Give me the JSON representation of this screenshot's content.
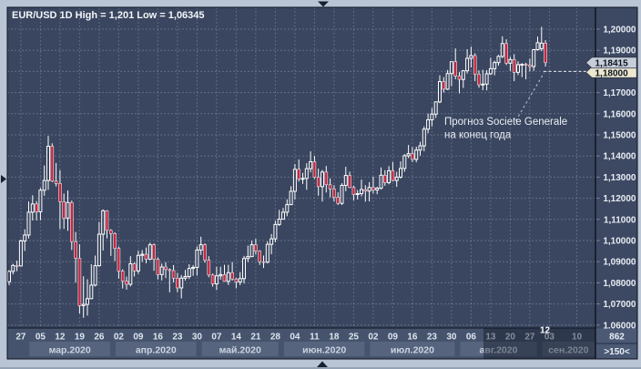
{
  "header": {
    "title": "EUR/USD 1D High = 1,201 Low = 1,06345"
  },
  "annotation": {
    "line1": "Прогноз Societe Generale",
    "line2": "на конец года"
  },
  "price_axis": {
    "current_badge": "1,18415",
    "forecast_badge": "1,18000"
  },
  "footer_info": {
    "bars": "862",
    "range": ">150<"
  },
  "countdown": "12",
  "colors": {
    "frame": "#b9c4d4",
    "chart_bg": "#3a465f",
    "axis_bg": "#46536d",
    "month_band": "#56647e",
    "grid": "#8b96ae",
    "bull": "#ffffff",
    "bear": "#c42742",
    "label_text": "#dde4ef",
    "current_badge_bg": "#c7ced9",
    "forecast_badge_bg": "#ece7cd"
  },
  "chart_data": {
    "type": "candlestick",
    "symbol": "EUR/USD",
    "timeframe": "1D",
    "visible_high": "1,201",
    "visible_low": "1,06345",
    "current_price": 1.18415,
    "forecast_price": 1.18,
    "start_date": "2020-02-24",
    "y_axis": {
      "min": 1.06,
      "max": 1.2,
      "step": 0.01,
      "labels": [
        "1,20000",
        "1,19000",
        "1,18000",
        "1,17000",
        "1,16000",
        "1,15000",
        "1,14000",
        "1,13000",
        "1,12000",
        "1,11000",
        "1,10000",
        "1,09000",
        "1,08000",
        "1,07000",
        "1,06000"
      ]
    },
    "x_ticks": [
      {
        "t": "27",
        "i": 3
      },
      {
        "t": "05",
        "i": 8
      },
      {
        "t": "12",
        "i": 13
      },
      {
        "t": "19",
        "i": 18
      },
      {
        "t": "26",
        "i": 23
      },
      {
        "t": "02",
        "i": 28
      },
      {
        "t": "09",
        "i": 33
      },
      {
        "t": "16",
        "i": 38
      },
      {
        "t": "23",
        "i": 43
      },
      {
        "t": "30",
        "i": 48
      },
      {
        "t": "07",
        "i": 53
      },
      {
        "t": "14",
        "i": 58
      },
      {
        "t": "21",
        "i": 63
      },
      {
        "t": "28",
        "i": 68
      },
      {
        "t": "04",
        "i": 73
      },
      {
        "t": "11",
        "i": 78
      },
      {
        "t": "18",
        "i": 83
      },
      {
        "t": "25",
        "i": 88
      },
      {
        "t": "02",
        "i": 93
      },
      {
        "t": "09",
        "i": 98
      },
      {
        "t": "16",
        "i": 103
      },
      {
        "t": "23",
        "i": 108
      },
      {
        "t": "30",
        "i": 113
      },
      {
        "t": "06",
        "i": 118
      },
      {
        "t": "13",
        "i": 123
      },
      {
        "t": "20",
        "i": 128
      },
      {
        "t": "27",
        "i": 133
      },
      {
        "t": "03",
        "i": 138
      },
      {
        "t": "10",
        "i": 145
      }
    ],
    "months": [
      {
        "label": "",
        "start": -2,
        "end": 4
      },
      {
        "label": "мар.2020",
        "start": 5,
        "end": 26
      },
      {
        "label": "апр.2020",
        "start": 27,
        "end": 48
      },
      {
        "label": "май.2020",
        "start": 49,
        "end": 69
      },
      {
        "label": "июн.2020",
        "start": 70,
        "end": 91
      },
      {
        "label": "июл.2020",
        "start": 92,
        "end": 114
      },
      {
        "label": "авг.2020",
        "start": 115,
        "end": 135
      },
      {
        "label": "сен.2020",
        "start": 136,
        "end": 152
      }
    ],
    "candles": [
      [
        1.0805,
        1.086,
        1.0788,
        1.0854
      ],
      [
        1.0854,
        1.089,
        1.084,
        1.0882
      ],
      [
        1.0882,
        1.0905,
        1.0855,
        1.088
      ],
      [
        1.088,
        1.1005,
        1.0878,
        1.0998
      ],
      [
        1.0998,
        1.1053,
        1.0951,
        1.1026
      ],
      [
        1.1026,
        1.1185,
        1.101,
        1.1134
      ],
      [
        1.1134,
        1.1214,
        1.1095,
        1.1173
      ],
      [
        1.1173,
        1.1187,
        1.1095,
        1.1136
      ],
      [
        1.1136,
        1.1249,
        1.1096,
        1.1238
      ],
      [
        1.1238,
        1.1355,
        1.1212,
        1.1284
      ],
      [
        1.1284,
        1.1495,
        1.124,
        1.1446
      ],
      [
        1.1446,
        1.146,
        1.1276,
        1.1281
      ],
      [
        1.1281,
        1.1367,
        1.1256,
        1.127
      ],
      [
        1.127,
        1.1333,
        1.1054,
        1.1184
      ],
      [
        1.1184,
        1.1222,
        1.1055,
        1.1106
      ],
      [
        1.1106,
        1.1237,
        1.1046,
        1.118
      ],
      [
        1.118,
        1.1189,
        1.0955,
        1.0995
      ],
      [
        1.0995,
        1.104,
        1.0801,
        1.0916
      ],
      [
        1.0916,
        1.0982,
        1.0655,
        1.0692
      ],
      [
        1.0692,
        1.0831,
        1.06345,
        1.0698
      ],
      [
        1.0698,
        1.0817,
        1.0645,
        1.0725
      ],
      [
        1.0725,
        1.0888,
        1.0723,
        1.0789
      ],
      [
        1.0789,
        1.0929,
        1.0783,
        1.0881
      ],
      [
        1.0881,
        1.1088,
        1.0877,
        1.103
      ],
      [
        1.103,
        1.1147,
        1.0953,
        1.1141
      ],
      [
        1.1141,
        1.1144,
        1.101,
        1.1048
      ],
      [
        1.1048,
        1.1054,
        1.0927,
        1.1033
      ],
      [
        1.1033,
        1.1039,
        1.0903,
        1.0963
      ],
      [
        1.0963,
        1.0971,
        1.082,
        1.0855
      ],
      [
        1.0855,
        1.0864,
        1.0773,
        1.0808
      ],
      [
        1.0808,
        1.083,
        1.0768,
        1.0793
      ],
      [
        1.0793,
        1.0926,
        1.0783,
        1.089
      ],
      [
        1.089,
        1.0897,
        1.083,
        1.0856
      ],
      [
        1.0856,
        1.0952,
        1.0842,
        1.093
      ],
      [
        1.093,
        1.0955,
        1.0899,
        1.0935
      ],
      [
        1.0935,
        1.0967,
        1.0892,
        1.0912
      ],
      [
        1.0912,
        1.099,
        1.0907,
        1.098
      ],
      [
        1.098,
        1.0986,
        1.0857,
        1.0911
      ],
      [
        1.0911,
        1.092,
        1.0816,
        1.0839
      ],
      [
        1.0839,
        1.0891,
        1.0811,
        1.0875
      ],
      [
        1.0875,
        1.0897,
        1.0822,
        1.0863
      ],
      [
        1.0863,
        1.0868,
        1.0755,
        1.0858
      ],
      [
        1.0858,
        1.0884,
        1.0802,
        1.0822
      ],
      [
        1.0822,
        1.0847,
        1.0756,
        1.0776
      ],
      [
        1.0776,
        1.0837,
        1.0726,
        1.0822
      ],
      [
        1.0822,
        1.0861,
        1.0811,
        1.083
      ],
      [
        1.083,
        1.0888,
        1.0818,
        1.0868
      ],
      [
        1.0868,
        1.0884,
        1.0833,
        1.0873
      ],
      [
        1.0873,
        1.0972,
        1.0834,
        1.0955
      ],
      [
        1.0955,
        1.1018,
        1.0932,
        1.098
      ],
      [
        1.098,
        1.0986,
        1.0895,
        1.0907
      ],
      [
        1.0907,
        1.0926,
        1.0826,
        1.0837
      ],
      [
        1.0837,
        1.0844,
        1.0782,
        1.0795
      ],
      [
        1.0795,
        1.0876,
        1.0766,
        1.0833
      ],
      [
        1.0833,
        1.0876,
        1.0815,
        1.0839
      ],
      [
        1.0839,
        1.0885,
        1.0805,
        1.0807
      ],
      [
        1.0807,
        1.0885,
        1.079,
        1.0848
      ],
      [
        1.0848,
        1.0898,
        1.081,
        1.0818
      ],
      [
        1.0818,
        1.0824,
        1.0775,
        1.0804
      ],
      [
        1.0804,
        1.0851,
        1.0789,
        1.082
      ],
      [
        1.082,
        1.0927,
        1.0797,
        1.0915
      ],
      [
        1.0915,
        1.0976,
        1.0898,
        1.0924
      ],
      [
        1.0924,
        1.0999,
        1.0922,
        1.098
      ],
      [
        1.098,
        1.1008,
        1.0934,
        1.095
      ],
      [
        1.095,
        1.0954,
        1.0885,
        1.09
      ],
      [
        1.09,
        1.0929,
        1.087,
        1.0898
      ],
      [
        1.0898,
        1.0996,
        1.0891,
        1.0982
      ],
      [
        1.0982,
        1.1031,
        1.0935,
        1.1008
      ],
      [
        1.1008,
        1.1093,
        1.0992,
        1.1076
      ],
      [
        1.1076,
        1.1145,
        1.1069,
        1.1101
      ],
      [
        1.1101,
        1.1154,
        1.1101,
        1.1134
      ],
      [
        1.1134,
        1.1195,
        1.1115,
        1.117
      ],
      [
        1.117,
        1.1257,
        1.1167,
        1.1233
      ],
      [
        1.1233,
        1.1362,
        1.1194,
        1.1337
      ],
      [
        1.1337,
        1.1384,
        1.1279,
        1.1291
      ],
      [
        1.1291,
        1.132,
        1.1268,
        1.1294
      ],
      [
        1.1294,
        1.1366,
        1.124,
        1.134
      ],
      [
        1.134,
        1.1422,
        1.1322,
        1.1373
      ],
      [
        1.1373,
        1.14,
        1.1292,
        1.1299
      ],
      [
        1.1299,
        1.134,
        1.1212,
        1.1255
      ],
      [
        1.1255,
        1.1334,
        1.1184,
        1.1324
      ],
      [
        1.1324,
        1.1353,
        1.1227,
        1.1264
      ],
      [
        1.1264,
        1.1294,
        1.1204,
        1.1244
      ],
      [
        1.1244,
        1.1262,
        1.1185,
        1.1205
      ],
      [
        1.1205,
        1.1228,
        1.1168,
        1.1176
      ],
      [
        1.1176,
        1.1271,
        1.1168,
        1.1261
      ],
      [
        1.1261,
        1.1349,
        1.1233,
        1.1308
      ],
      [
        1.1308,
        1.1326,
        1.1248,
        1.1251
      ],
      [
        1.1251,
        1.126,
        1.119,
        1.1218
      ],
      [
        1.1218,
        1.1239,
        1.1194,
        1.1222
      ],
      [
        1.1222,
        1.1288,
        1.1209,
        1.1241
      ],
      [
        1.1241,
        1.1262,
        1.1184,
        1.1234
      ],
      [
        1.1234,
        1.1276,
        1.1185,
        1.1251
      ],
      [
        1.1251,
        1.1302,
        1.1223,
        1.1239
      ],
      [
        1.1239,
        1.1254,
        1.1219,
        1.1248
      ],
      [
        1.1248,
        1.1346,
        1.1241,
        1.1309
      ],
      [
        1.1309,
        1.1333,
        1.1259,
        1.1274
      ],
      [
        1.1274,
        1.1352,
        1.1266,
        1.133
      ],
      [
        1.133,
        1.1371,
        1.128,
        1.1284
      ],
      [
        1.1284,
        1.1325,
        1.1254,
        1.13
      ],
      [
        1.13,
        1.1375,
        1.1293,
        1.1341
      ],
      [
        1.1341,
        1.1409,
        1.1325,
        1.1401
      ],
      [
        1.1401,
        1.1452,
        1.139,
        1.1411
      ],
      [
        1.1411,
        1.1442,
        1.1371,
        1.1384
      ],
      [
        1.1384,
        1.1444,
        1.137,
        1.1428
      ],
      [
        1.1428,
        1.1467,
        1.1402,
        1.1448
      ],
      [
        1.1448,
        1.154,
        1.1422,
        1.1527
      ],
      [
        1.1527,
        1.1601,
        1.1507,
        1.1571
      ],
      [
        1.1571,
        1.1627,
        1.154,
        1.1598
      ],
      [
        1.1598,
        1.1658,
        1.158,
        1.1656
      ],
      [
        1.1656,
        1.1782,
        1.165,
        1.1752
      ],
      [
        1.1752,
        1.1773,
        1.17,
        1.1716
      ],
      [
        1.1716,
        1.1807,
        1.1712,
        1.179
      ],
      [
        1.179,
        1.1847,
        1.173,
        1.1846
      ],
      [
        1.1846,
        1.1909,
        1.1763,
        1.1778
      ],
      [
        1.1778,
        1.1797,
        1.1696,
        1.1762
      ],
      [
        1.1762,
        1.1807,
        1.1722,
        1.1803
      ],
      [
        1.1803,
        1.1905,
        1.179,
        1.1862
      ],
      [
        1.1862,
        1.1917,
        1.1819,
        1.1875
      ],
      [
        1.1875,
        1.1886,
        1.1754,
        1.1787
      ],
      [
        1.1787,
        1.1805,
        1.1723,
        1.1737
      ],
      [
        1.1737,
        1.1808,
        1.1711,
        1.174
      ],
      [
        1.174,
        1.1806,
        1.171,
        1.1789
      ],
      [
        1.1789,
        1.1865,
        1.1783,
        1.1813
      ],
      [
        1.1813,
        1.1851,
        1.1782,
        1.1842
      ],
      [
        1.1842,
        1.1878,
        1.1827,
        1.1871
      ],
      [
        1.1871,
        1.1966,
        1.1863,
        1.1932
      ],
      [
        1.1932,
        1.1952,
        1.183,
        1.1839
      ],
      [
        1.1839,
        1.1869,
        1.1802,
        1.1856
      ],
      [
        1.1856,
        1.1882,
        1.1754,
        1.1796
      ],
      [
        1.1796,
        1.1848,
        1.1783,
        1.1832
      ],
      [
        1.1832,
        1.1839,
        1.1773,
        1.1834
      ],
      [
        1.1834,
        1.1841,
        1.1763,
        1.183
      ],
      [
        1.183,
        1.1861,
        1.18,
        1.1823
      ],
      [
        1.1823,
        1.1906,
        1.1803,
        1.1903
      ],
      [
        1.1903,
        1.1965,
        1.1898,
        1.1936
      ],
      [
        1.1908,
        1.2011,
        1.1896,
        1.1934
      ],
      [
        1.1934,
        1.1948,
        1.1823,
        1.18415
      ]
    ]
  }
}
